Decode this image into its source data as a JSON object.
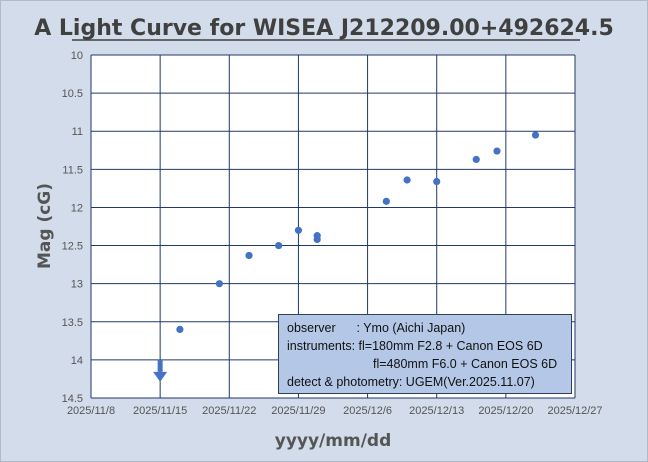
{
  "chart_data": {
    "type": "scatter",
    "title": "A Light Curve for WISEA J212209.00+492624.5",
    "xlabel": "yyyy/mm/dd",
    "ylabel": "Mag  (cG)",
    "x_ticks": [
      "2025/11/8",
      "2025/11/15",
      "2025/11/22",
      "2025/11/29",
      "2025/12/6",
      "2025/12/13",
      "2025/12/20",
      "2025/12/27"
    ],
    "y_ticks": [
      "10",
      "10.5",
      "11",
      "11.5",
      "12",
      "12.5",
      "13",
      "13.5",
      "14",
      "14.5"
    ],
    "xlim": [
      "2025-11-08",
      "2025-12-27"
    ],
    "ylim": [
      14.5,
      10
    ],
    "y_inverted": true,
    "grid": true,
    "marker_color": "#4472c4",
    "series": [
      {
        "points": [
          {
            "x": "2025-11-17.0",
            "y": 13.6
          },
          {
            "x": "2025-11-21.0",
            "y": 13.0
          },
          {
            "x": "2025-11-24.0",
            "y": 12.63
          },
          {
            "x": "2025-11-27.0",
            "y": 12.5
          },
          {
            "x": "2025-11-29.0",
            "y": 12.3
          },
          {
            "x": "2025-11-30.9",
            "y": 12.37
          },
          {
            "x": "2025-11-30.9",
            "y": 12.42
          },
          {
            "x": "2025-12-07.9",
            "y": 11.92
          },
          {
            "x": "2025-12-10.0",
            "y": 11.64
          },
          {
            "x": "2025-12-13.0",
            "y": 11.66
          },
          {
            "x": "2025-12-17.0",
            "y": 11.37
          },
          {
            "x": "2025-12-19.1",
            "y": 11.26
          },
          {
            "x": "2025-12-23.0",
            "y": 11.05
          }
        ]
      }
    ],
    "upper_limit": {
      "x": "2025-11-15.0",
      "y": 14.0,
      "arrow": "down"
    }
  },
  "info_box": {
    "line1": "observer      : Ymo (Aichi Japan)",
    "line2": "instruments: fl=180mm F2.8 + Canon EOS 6D",
    "line3": "fl=480mm F6.0 + Canon EOS 6D",
    "line4": "detect & photometry: UGEM(Ver.2025.11.07)"
  }
}
